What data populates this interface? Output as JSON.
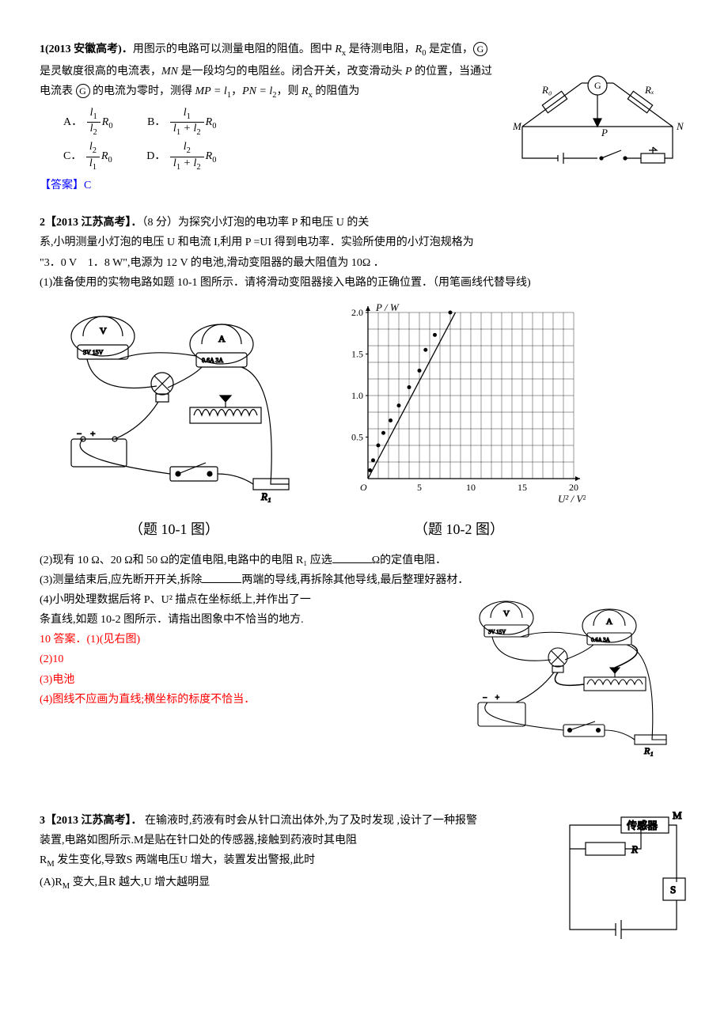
{
  "q1": {
    "header": "1(2013 安徽高考)．",
    "text1": "用图示的电路可以测量电阻的阻值。图中 ",
    "rx": "R",
    "rx_sub": "x",
    "text2": " 是待测电阻，",
    "r0": "R",
    "r0_sub": "0",
    "text3": " 是定值，",
    "g_letter": "G",
    "text4": "是灵敏度很高的电流表，",
    "mn": "MN",
    "text5": " 是一段均匀的电阻丝。闭合开关，改变滑动头 ",
    "p": "P",
    "text6": " 的位置，当通过电流表 ",
    "text7": " 的电流为零时，测得 ",
    "eq1": "MP = l",
    "eq1_sub": "1",
    "comma1": "，",
    "eq2": "PN = l",
    "eq2_sub": "2",
    "text8": "，则 ",
    "text9": " 的阻值为",
    "options": {
      "A": {
        "label": "A．",
        "num": "l<sub>1</sub>",
        "den": "l<sub>2</sub>",
        "suffix": "R<sub>0</sub>"
      },
      "B": {
        "label": "B．",
        "num": "l<sub>1</sub>",
        "den": "l<sub>1</sub> + l<sub>2</sub>",
        "suffix": "R<sub>0</sub>"
      },
      "C": {
        "label": "C．",
        "num": "l<sub>2</sub>",
        "den": "l<sub>1</sub>",
        "suffix": "R<sub>0</sub>"
      },
      "D": {
        "label": "D．",
        "num": "l<sub>2</sub>",
        "den": "l<sub>1</sub> + l<sub>2</sub>",
        "suffix": "R<sub>0</sub>"
      }
    },
    "answer_label": "【答案】",
    "answer": "C",
    "circuit": {
      "labels": {
        "R0": "R₀",
        "Rx": "Rₓ",
        "G": "G",
        "M": "M",
        "N": "N",
        "P": "P"
      },
      "stroke": "#000000"
    }
  },
  "q2": {
    "header": "2【2013 江苏高考】．",
    "intro": "（8 分）为探究小灯泡的电功率 P 和电压 U 的关",
    "line2": "系,小明测量小灯泡的电压 U 和电流 I,利用 P =UI 得到电功率．实验所使用的小灯泡规格为",
    "line3": "\"3．0 V　1．8 W\",电源为 12 V 的电池,滑动变阻器的最大阻值为 10Ω ．",
    "part1": "(1)准备使用的实物电路如题 10-1 图所示．请将滑动变阻器接入电路的正确位置．（用笔画线代替导线)",
    "fig1_label": "（题 10-1 图）",
    "fig2_label": "（题 10-2 图）",
    "part2": "(2)现有 10 Ω、20 Ω和 50 Ω的定值电阻,电路中的电阻 R₁ 应选",
    "part2_suffix": "Ω的定值电阻．",
    "part3a": "(3)测量结束后,应先断开开关,拆除",
    "part3b": "两端的导线,再拆除其他导线,最后整理好器材．",
    "part4a": "(4)小明处理数据后将 P、U² 描点在坐标纸上,并作出了一",
    "part4b": "条直线,如题 10-2 图所示．请指出图象中不恰当的地方.",
    "ans_label": "10 答案．",
    "ans1": "(1)(见右图)",
    "ans2": "(2)10",
    "ans3": "(3)电池",
    "ans4": "(4)图线不应画为直线;横坐标的标度不恰当．",
    "chart": {
      "type": "scatter-line",
      "xlabel": "U² / V²",
      "ylabel": "P / W",
      "xlim": [
        0,
        20
      ],
      "ylim": [
        0,
        2.0
      ],
      "xticks": [
        0,
        5,
        10,
        15,
        20
      ],
      "yticks": [
        0,
        0.5,
        1.0,
        1.5,
        2.0
      ],
      "grid_divisions_x": 20,
      "grid_divisions_y": 10,
      "grid_color": "#000000",
      "point_color": "#000000",
      "line_color": "#000000",
      "points": [
        [
          0.2,
          0.1
        ],
        [
          0.5,
          0.22
        ],
        [
          1.0,
          0.4
        ],
        [
          1.5,
          0.55
        ],
        [
          2.2,
          0.7
        ],
        [
          3.0,
          0.88
        ],
        [
          4.0,
          1.1
        ],
        [
          5.0,
          1.3
        ],
        [
          5.6,
          1.55
        ],
        [
          6.5,
          1.73
        ],
        [
          8.0,
          2.0
        ]
      ],
      "line": {
        "x1": 0,
        "y1": 0,
        "x2": 8.5,
        "y2": 2.0
      }
    },
    "circuit_labels": {
      "V": "V",
      "A": "A",
      "R1": "R₁",
      "V_scale": "3V 15V",
      "A_scale": "0.6A 3A"
    }
  },
  "q3": {
    "header": "3【2013 江苏高考】．",
    "line1": " 在输液时,药液有时会从针口流出体外,为了及时发现 ,设计了一种报警",
    "line2": "装置,电路如图所示.M是贴在针口处的传感器,接触到药液时其电阻",
    "line3": "R",
    "line3_sub": "M",
    "line3b": " 发生变化,导致S 两端电压U 增大，装置发出警报,此时",
    "optA": "(A)R",
    "optA_sub": "M",
    "optA_suffix": " 变大,且R 越大,U 增大越明显",
    "circuit": {
      "sensor_label": "传感器",
      "M": "M",
      "R": "R",
      "S": "S",
      "stroke": "#000000"
    }
  }
}
